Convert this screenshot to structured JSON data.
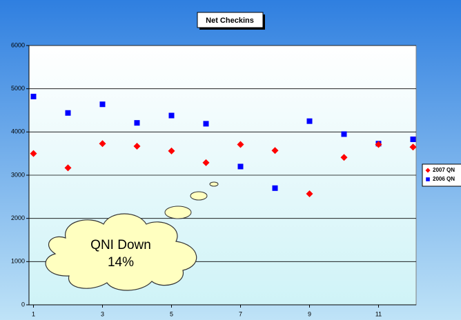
{
  "chart_data": {
    "type": "scatter",
    "title": "Net Checkins",
    "x": [
      1,
      2,
      3,
      4,
      5,
      6,
      7,
      8,
      9,
      10,
      11,
      12
    ],
    "series": [
      {
        "name": "2007 QN",
        "color": "#ff0000",
        "marker": "diamond",
        "values": [
          3500,
          3170,
          3730,
          3670,
          3560,
          3290,
          3710,
          3570,
          2570,
          3410,
          3710,
          3650
        ]
      },
      {
        "name": "2006 QN",
        "color": "#0000ff",
        "marker": "square",
        "values": [
          4820,
          4440,
          4640,
          4210,
          4380,
          4190,
          3200,
          2700,
          4250,
          3950,
          3730,
          3830
        ]
      }
    ],
    "xlim": [
      0.87,
      12.09
    ],
    "xticks": [
      1,
      3,
      5,
      7,
      9,
      11
    ],
    "ylim": [
      0,
      6000
    ],
    "yticks": [
      0,
      1000,
      2000,
      3000,
      4000,
      5000,
      6000
    ],
    "grid": true,
    "legend": "right",
    "annotation": [
      "QNI Down",
      "14%"
    ]
  }
}
